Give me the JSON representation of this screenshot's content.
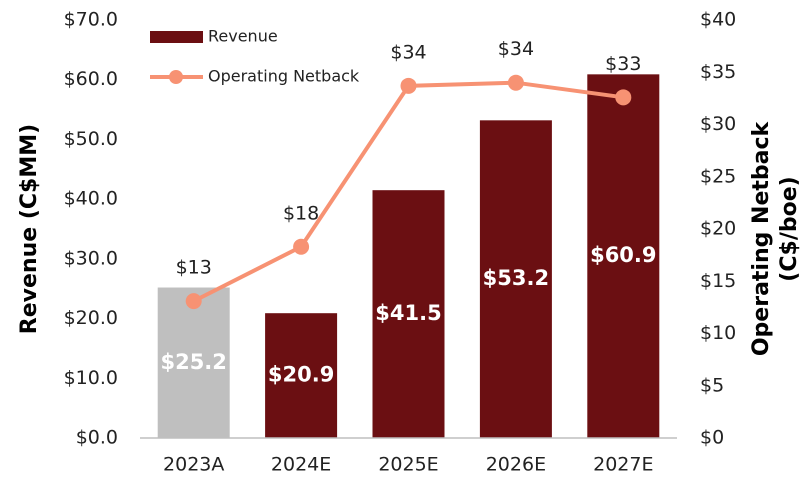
{
  "chart_data": {
    "type": "combo",
    "categories": [
      "2023A",
      "2024E",
      "2025E",
      "2026E",
      "2027E"
    ],
    "ylabel": "Revenue (C$MM)",
    "y2label": [
      "Operating Netback",
      "(C$/boe)"
    ],
    "ylim": [
      0,
      70
    ],
    "yticks": [
      {
        "value": 0,
        "label": "$0.0"
      },
      {
        "value": 10,
        "label": "$10.0"
      },
      {
        "value": 20,
        "label": "$20.0"
      },
      {
        "value": 30,
        "label": "$30.0"
      },
      {
        "value": 40,
        "label": "$40.0"
      },
      {
        "value": 50,
        "label": "$50.0"
      },
      {
        "value": 60,
        "label": "$60.0"
      },
      {
        "value": 70,
        "label": "$70.0"
      }
    ],
    "y2lim": [
      0,
      40
    ],
    "y2ticks": [
      {
        "value": 0,
        "label": "$0"
      },
      {
        "value": 5,
        "label": "$5"
      },
      {
        "value": 10,
        "label": "$10"
      },
      {
        "value": 15,
        "label": "$15"
      },
      {
        "value": 20,
        "label": "$20"
      },
      {
        "value": 25,
        "label": "$25"
      },
      {
        "value": 30,
        "label": "$30"
      },
      {
        "value": 35,
        "label": "$35"
      },
      {
        "value": 40,
        "label": "$40"
      }
    ],
    "legend": "upper left",
    "series": [
      {
        "name": "Revenue",
        "type": "bar",
        "color": "#6b0f12",
        "colors": [
          "#bfbfbf",
          "#6b0f12",
          "#6b0f12",
          "#6b0f12",
          "#6b0f12"
        ],
        "values": [
          25.2,
          20.9,
          41.5,
          53.2,
          60.9
        ],
        "value_labels": [
          "$25.2",
          "$20.9",
          "$41.5",
          "$53.2",
          "$60.9"
        ]
      },
      {
        "name": "Operating Netback",
        "type": "line",
        "axis": "y2",
        "color": "#f79273",
        "values": [
          13.1,
          18.3,
          33.7,
          34.0,
          32.6
        ],
        "value_labels": [
          "$13",
          "$18",
          "$34",
          "$34",
          "$33"
        ]
      }
    ]
  }
}
